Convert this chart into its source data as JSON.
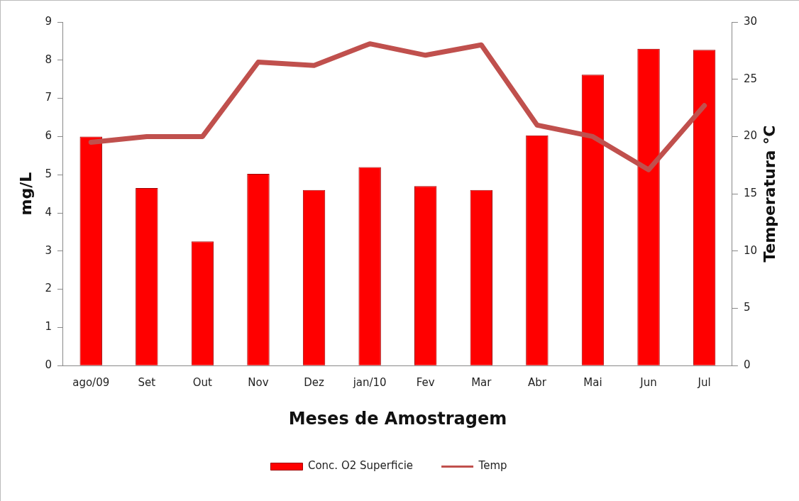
{
  "chart_data": {
    "type": "bar",
    "xlabel": "Meses de Amostragem",
    "ylabel": "mg/L",
    "y2label": "Temperatura °C",
    "categories": [
      "ago/09",
      "Set",
      "Out",
      "Nov",
      "Dez",
      "jan/10",
      "Fev",
      "Mar",
      "Abr",
      "Mai",
      "Jun",
      "Jul"
    ],
    "series": [
      {
        "name": "Conc. O2 Superficie",
        "color": "#ff0000",
        "values": [
          6.0,
          4.65,
          3.25,
          5.02,
          4.6,
          5.2,
          4.7,
          4.6,
          6.03,
          7.62,
          8.3,
          8.27
        ]
      },
      {
        "name": "Temp",
        "type": "line",
        "axis": "y2",
        "color": "#c0504d",
        "values": [
          19.5,
          20,
          20,
          26.5,
          26.2,
          28.1,
          27.1,
          28,
          21,
          20,
          17.1,
          22.7
        ]
      }
    ],
    "ylim": [
      0,
      9
    ],
    "yticks": [
      0,
      1,
      2,
      3,
      4,
      5,
      6,
      7,
      8,
      9
    ],
    "y2lim": [
      0,
      30
    ],
    "y2ticks": [
      0,
      5,
      10,
      15,
      20,
      25,
      30
    ],
    "grid": false,
    "legend": "bottom",
    "marker": "none",
    "line_style": "solid"
  }
}
